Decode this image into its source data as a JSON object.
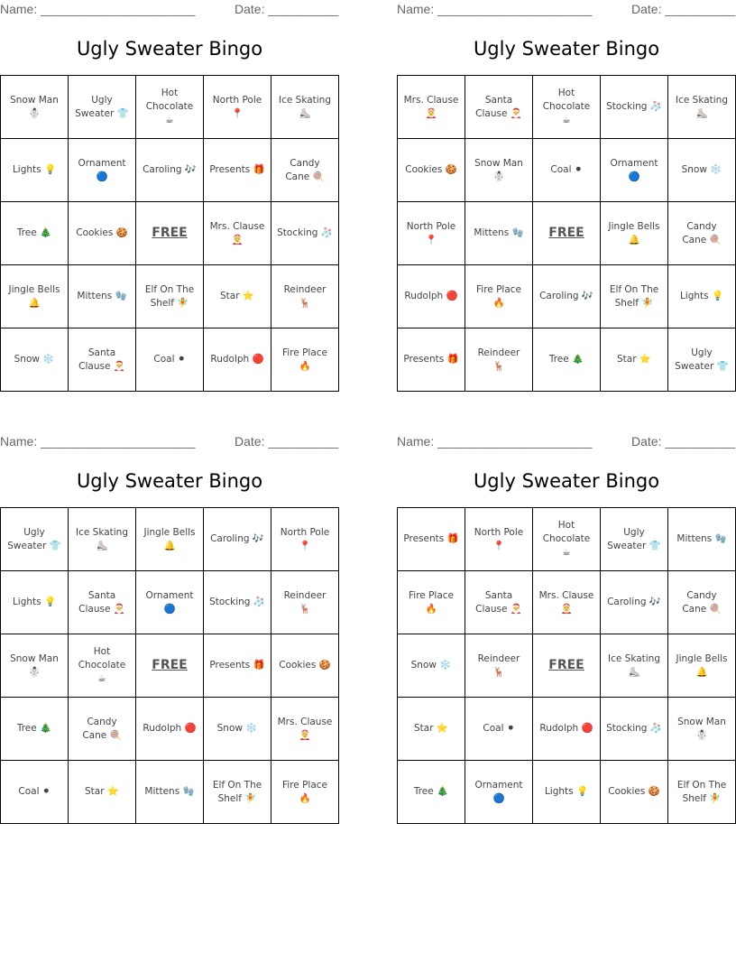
{
  "cards": [
    {
      "name_label": "Name: ______________________",
      "date_label": "Date: __________",
      "title": "Ugly Sweater Bingo",
      "grid": [
        [
          "Snow Man ☃️",
          "Ugly Sweater 👕",
          "Hot Chocolate ☕",
          "North Pole 📍",
          "Ice Skating ⛸️"
        ],
        [
          "Lights 💡",
          "Ornament 🔵",
          "Caroling 🎶",
          "Presents 🎁",
          "Candy Cane 🍭"
        ],
        [
          "Tree 🎄",
          "Cookies 🍪",
          "FREE",
          "Mrs. Clause 🤶",
          "Stocking 🧦"
        ],
        [
          "Jingle Bells 🔔",
          "Mittens 🧤",
          "Elf On The Shelf 🧚",
          "Star ⭐",
          "Reindeer 🦌"
        ],
        [
          "Snow ❄️",
          "Santa Clause 🎅",
          "Coal ⚫",
          "Rudolph 🔴",
          "Fire Place 🔥"
        ]
      ]
    },
    {
      "name_label": "Name: ______________________",
      "date_label": "Date: __________",
      "title": "Ugly Sweater Bingo",
      "grid": [
        [
          "Mrs. Clause 🤶",
          "Santa Clause 🎅",
          "Hot Chocolate ☕",
          "Stocking 🧦",
          "Ice Skating ⛸️"
        ],
        [
          "Cookies 🍪",
          "Snow Man ☃️",
          "Coal ⚫",
          "Ornament 🔵",
          "Snow ❄️"
        ],
        [
          "North Pole 📍",
          "Mittens 🧤",
          "FREE",
          "Jingle Bells 🔔",
          "Candy Cane 🍭"
        ],
        [
          "Rudolph 🔴",
          "Fire Place 🔥",
          "Caroling 🎶",
          "Elf On The Shelf 🧚",
          "Lights 💡"
        ],
        [
          "Presents 🎁",
          "Reindeer 🦌",
          "Tree 🎄",
          "Star ⭐",
          "Ugly Sweater 👕"
        ]
      ]
    },
    {
      "name_label": "Name: ______________________",
      "date_label": "Date: __________",
      "title": "Ugly Sweater Bingo",
      "grid": [
        [
          "Ugly Sweater 👕",
          "Ice Skating ⛸️",
          "Jingle Bells 🔔",
          "Caroling 🎶",
          "North Pole 📍"
        ],
        [
          "Lights 💡",
          "Santa Clause 🎅",
          "Ornament 🔵",
          "Stocking 🧦",
          "Reindeer 🦌"
        ],
        [
          "Snow Man ☃️",
          "Hot Chocolate ☕",
          "FREE",
          "Presents 🎁",
          "Cookies 🍪"
        ],
        [
          "Tree 🎄",
          "Candy Cane 🍭",
          "Rudolph 🔴",
          "Snow ❄️",
          "Mrs. Clause 🤶"
        ],
        [
          "Coal ⚫",
          "Star ⭐",
          "Mittens 🧤",
          "Elf On The Shelf 🧚",
          "Fire Place 🔥"
        ]
      ]
    },
    {
      "name_label": "Name: ______________________",
      "date_label": "Date: __________",
      "title": "Ugly Sweater Bingo",
      "grid": [
        [
          "Presents 🎁",
          "North Pole 📍",
          "Hot Chocolate ☕",
          "Ugly Sweater 👕",
          "Mittens 🧤"
        ],
        [
          "Fire Place 🔥",
          "Santa Clause 🎅",
          "Mrs. Clause 🤶",
          "Caroling 🎶",
          "Candy Cane 🍭"
        ],
        [
          "Snow ❄️",
          "Reindeer 🦌",
          "FREE",
          "Ice Skating ⛸️",
          "Jingle Bells 🔔"
        ],
        [
          "Star ⭐",
          "Coal ⚫",
          "Rudolph 🔴",
          "Stocking 🧦",
          "Snow Man ☃️"
        ],
        [
          "Tree 🎄",
          "Ornament 🔵",
          "Lights 💡",
          "Cookies 🍪",
          "Elf On The Shelf 🧚"
        ]
      ]
    }
  ]
}
